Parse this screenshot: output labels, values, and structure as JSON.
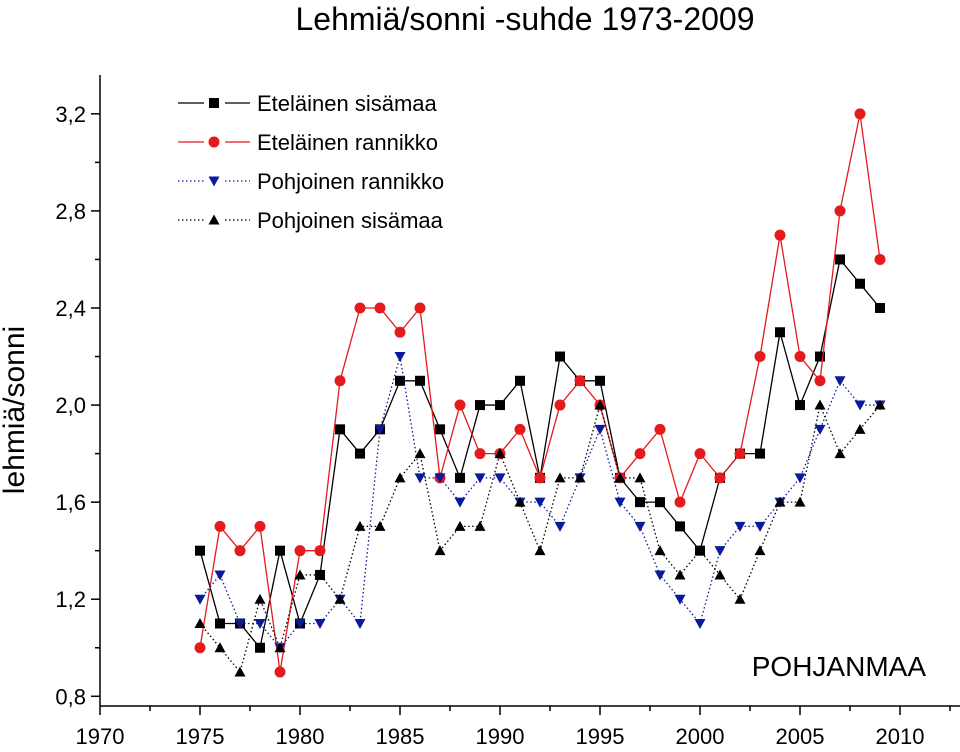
{
  "chart_data": {
    "type": "line",
    "title": "Lehmiä/sonni -suhde 1973-2009",
    "xlabel": "",
    "ylabel": "lehmiä/sonni",
    "annotation": "POHJANMAA",
    "xlim": [
      1970,
      2013
    ],
    "ylim": [
      0.76,
      3.36
    ],
    "x_ticks": [
      1970,
      1975,
      1980,
      1985,
      1990,
      1995,
      2000,
      2005,
      2010
    ],
    "x_tick_labels": [
      "1970",
      "1975",
      "1980",
      "1985",
      "1990",
      "1995",
      "2000",
      "2005",
      "2010"
    ],
    "y_ticks": [
      0.8,
      1.2,
      1.6,
      2.0,
      2.4,
      2.8,
      3.2
    ],
    "y_tick_labels": [
      "0,8",
      "1,2",
      "1,6",
      "2,0",
      "2,4",
      "2,8",
      "3,2"
    ],
    "grid": false,
    "legend_position": "top-left",
    "x": [
      1975,
      1976,
      1977,
      1978,
      1979,
      1980,
      1981,
      1982,
      1983,
      1984,
      1985,
      1986,
      1987,
      1988,
      1989,
      1990,
      1991,
      1992,
      1993,
      1994,
      1995,
      1996,
      1997,
      1998,
      1999,
      2000,
      2001,
      2002,
      2003,
      2004,
      2005,
      2006,
      2007,
      2008,
      2009
    ],
    "series": [
      {
        "name": "Eteläinen sisämaa",
        "color": "#000000",
        "marker": "square",
        "line": "solid",
        "values": [
          1.4,
          1.1,
          1.1,
          1.0,
          1.4,
          1.1,
          1.3,
          1.9,
          1.8,
          1.9,
          2.1,
          2.1,
          1.9,
          1.7,
          2.0,
          2.0,
          2.1,
          1.7,
          2.2,
          2.1,
          2.1,
          1.7,
          1.6,
          1.6,
          1.5,
          1.4,
          1.7,
          1.8,
          1.8,
          2.3,
          2.0,
          2.2,
          2.6,
          2.5,
          2.4
        ]
      },
      {
        "name": "Eteläinen rannikko",
        "color": "#e41a1c",
        "marker": "circle",
        "line": "solid",
        "values": [
          1.0,
          1.5,
          1.4,
          1.5,
          0.9,
          1.4,
          1.4,
          2.1,
          2.4,
          2.4,
          2.3,
          2.4,
          1.7,
          2.0,
          1.8,
          1.8,
          1.9,
          1.7,
          2.0,
          2.1,
          2.0,
          1.7,
          1.8,
          1.9,
          1.6,
          1.8,
          1.7,
          1.8,
          2.2,
          2.7,
          2.2,
          2.1,
          2.8,
          3.2,
          2.6
        ]
      },
      {
        "name": "Pohjoinen rannikko",
        "color": "#0a1a9c",
        "marker": "triangle-down",
        "line": "dotted",
        "values": [
          1.2,
          1.3,
          1.1,
          1.1,
          1.0,
          1.1,
          1.1,
          1.2,
          1.1,
          1.9,
          2.2,
          1.7,
          1.7,
          1.6,
          1.7,
          1.7,
          1.6,
          1.6,
          1.5,
          1.7,
          1.9,
          1.6,
          1.5,
          1.3,
          1.2,
          1.1,
          1.4,
          1.5,
          1.5,
          1.6,
          1.7,
          1.9,
          2.1,
          2.0,
          2.0
        ]
      },
      {
        "name": "Pohjoinen sisämaa",
        "color": "#000000",
        "marker": "triangle-up",
        "line": "dotted",
        "values": [
          1.1,
          1.0,
          0.9,
          1.2,
          1.0,
          1.3,
          1.3,
          1.2,
          1.5,
          1.5,
          1.7,
          1.8,
          1.4,
          1.5,
          1.5,
          1.8,
          1.6,
          1.4,
          1.7,
          1.7,
          2.0,
          1.7,
          1.7,
          1.4,
          1.3,
          1.4,
          1.3,
          1.2,
          1.4,
          1.6,
          1.6,
          2.0,
          1.8,
          1.9,
          2.0
        ]
      }
    ]
  }
}
